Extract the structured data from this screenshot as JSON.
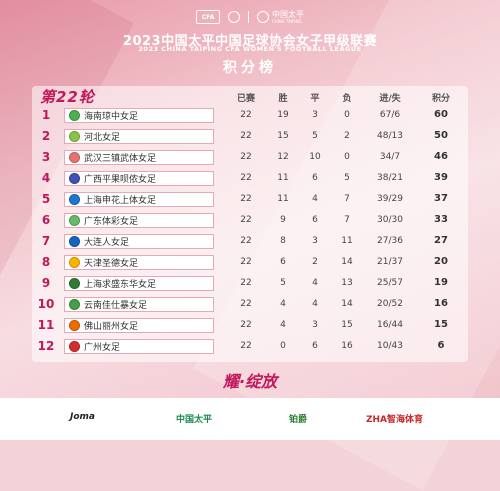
{
  "header": {
    "cfa_logo_text": "CFA",
    "title_cn": "2023中国太平中国足球协会女子甲级联赛",
    "title_en": "2023 CHINA TAIPING CFA WOMEN'S FOOTBALL LEAGUE",
    "table_title": "积分榜",
    "sponsor_logo_cn": "中国太平",
    "sponsor_logo_en": "CHINA TAIPING"
  },
  "round_label": "第22轮",
  "columns": {
    "played": "已赛",
    "won": "胜",
    "drawn": "平",
    "lost": "负",
    "goals": "进/失",
    "points": "积分"
  },
  "standings": [
    {
      "rank": "1",
      "team": "海南琼中女足",
      "played": "22",
      "won": "19",
      "drawn": "3",
      "lost": "0",
      "goals": "67/6",
      "points": "60",
      "crest_color": "#4caf50"
    },
    {
      "rank": "2",
      "team": "河北女足",
      "played": "22",
      "won": "15",
      "drawn": "5",
      "lost": "2",
      "goals": "48/13",
      "points": "50",
      "crest_color": "#8bc34a"
    },
    {
      "rank": "3",
      "team": "武汉三镇武体女足",
      "played": "22",
      "won": "12",
      "drawn": "10",
      "lost": "0",
      "goals": "34/7",
      "points": "46",
      "crest_color": "#e57373"
    },
    {
      "rank": "4",
      "team": "广西平果呗侬女足",
      "played": "22",
      "won": "11",
      "drawn": "6",
      "lost": "5",
      "goals": "38/21",
      "points": "39",
      "crest_color": "#3f51b5"
    },
    {
      "rank": "5",
      "team": "上海申花上体女足",
      "played": "22",
      "won": "11",
      "drawn": "4",
      "lost": "7",
      "goals": "39/29",
      "points": "37",
      "crest_color": "#1976d2"
    },
    {
      "rank": "6",
      "team": "广东体彩女足",
      "played": "22",
      "won": "9",
      "drawn": "6",
      "lost": "7",
      "goals": "30/30",
      "points": "33",
      "crest_color": "#66bb6a"
    },
    {
      "rank": "7",
      "team": "大连人女足",
      "played": "22",
      "won": "8",
      "drawn": "3",
      "lost": "11",
      "goals": "27/36",
      "points": "27",
      "crest_color": "#1565c0"
    },
    {
      "rank": "8",
      "team": "天津圣德女足",
      "played": "22",
      "won": "6",
      "drawn": "2",
      "lost": "14",
      "goals": "21/37",
      "points": "20",
      "crest_color": "#ffb300"
    },
    {
      "rank": "9",
      "team": "上海求盛东华女足",
      "played": "22",
      "won": "5",
      "drawn": "4",
      "lost": "13",
      "goals": "25/57",
      "points": "19",
      "crest_color": "#2e7d32"
    },
    {
      "rank": "10",
      "team": "云南佳仕暴女足",
      "played": "22",
      "won": "4",
      "drawn": "4",
      "lost": "14",
      "goals": "20/52",
      "points": "16",
      "crest_color": "#43a047"
    },
    {
      "rank": "11",
      "team": "佛山丽州女足",
      "played": "22",
      "won": "4",
      "drawn": "3",
      "lost": "15",
      "goals": "16/44",
      "points": "15",
      "crest_color": "#ef6c00"
    },
    {
      "rank": "12",
      "team": "广州女足",
      "played": "22",
      "won": "0",
      "drawn": "6",
      "lost": "16",
      "goals": "10/43",
      "points": "6",
      "crest_color": "#d32f2f"
    }
  ],
  "slogan": "耀·绽放",
  "sponsors": {
    "joma": "Joma",
    "taiping": "中国太平",
    "third": "铂爵",
    "zhiha": "ZHA智海体育"
  }
}
